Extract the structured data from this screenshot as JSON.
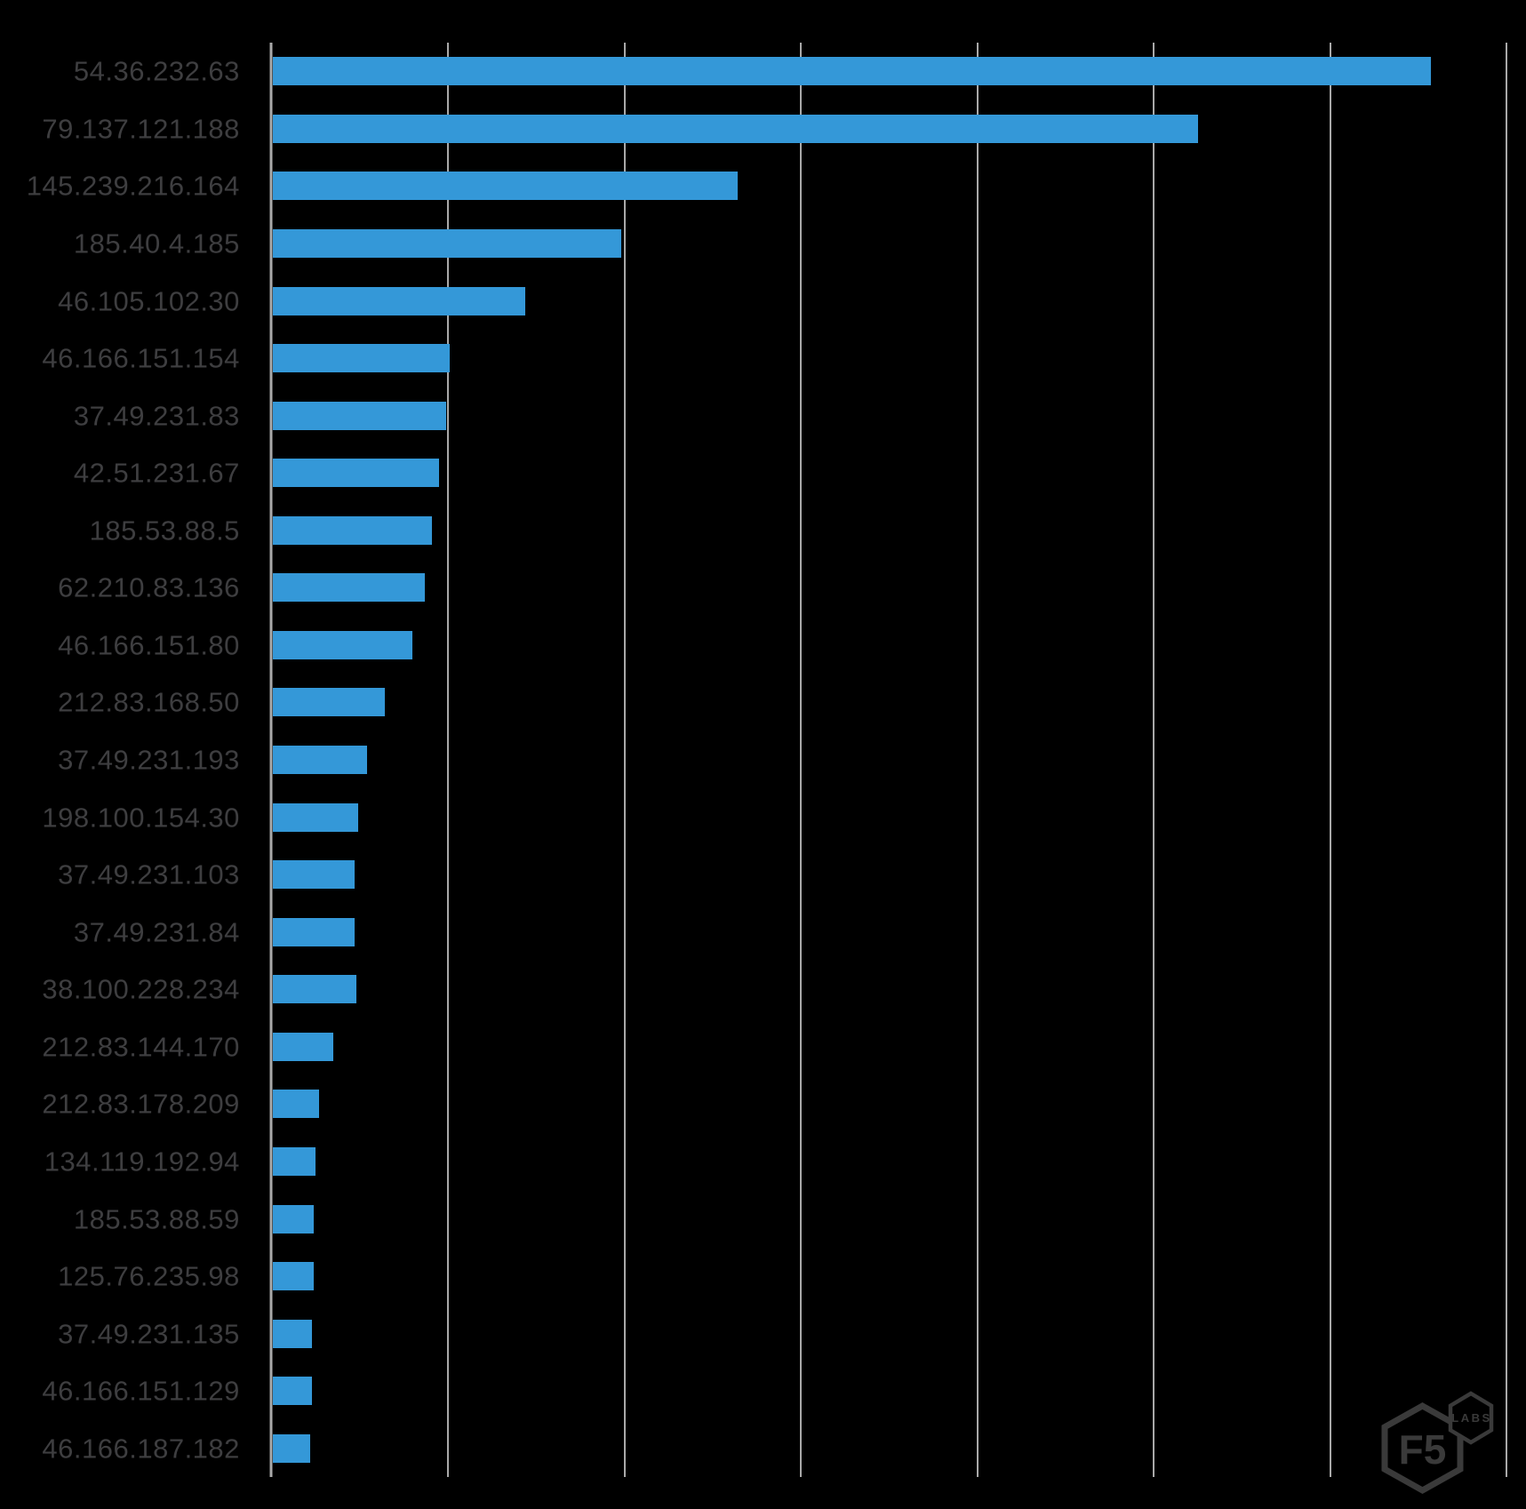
{
  "chart_data": {
    "type": "bar",
    "orientation": "horizontal",
    "title": "",
    "xlabel": "",
    "ylabel": "",
    "categories": [
      "54.36.232.63",
      "79.137.121.188",
      "145.239.216.164",
      "185.40.4.185",
      "46.105.102.30",
      "46.166.151.154",
      "37.49.231.83",
      "42.51.231.67",
      "185.53.88.5",
      "62.210.83.136",
      "46.166.151.80",
      "212.83.168.50",
      "37.49.231.193",
      "198.100.154.30",
      "37.49.231.103",
      "37.49.231.84",
      "38.100.228.234",
      "212.83.144.170",
      "212.83.178.209",
      "134.119.192.94",
      "185.53.88.59",
      "125.76.235.98",
      "37.49.231.135",
      "46.166.151.129",
      "46.166.187.182"
    ],
    "values": [
      6.56,
      5.24,
      2.63,
      1.97,
      1.43,
      1.0,
      0.98,
      0.94,
      0.9,
      0.86,
      0.79,
      0.63,
      0.53,
      0.48,
      0.46,
      0.46,
      0.47,
      0.34,
      0.26,
      0.24,
      0.23,
      0.23,
      0.22,
      0.22,
      0.21
    ],
    "xlim": [
      0,
      7
    ],
    "gridline_count": 8,
    "x_tick_labels_visible": false,
    "grid_on": true,
    "legend": "none",
    "bar_color": "#3498d8",
    "background_color": "#000000",
    "label_color": "#3e3e40",
    "gridline_color": "#a9a9a9"
  },
  "branding": {
    "logo_primary": "F5",
    "logo_secondary": "LABS"
  }
}
